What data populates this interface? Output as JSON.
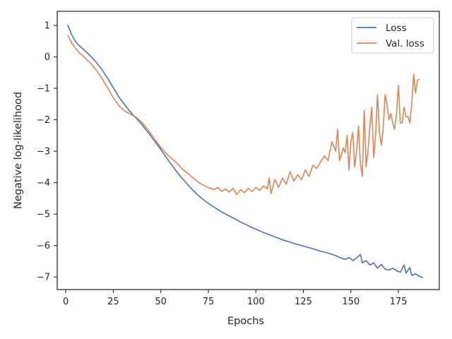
{
  "chart_data": {
    "type": "line",
    "title": "",
    "xlabel": "Epochs",
    "ylabel": "Negative log-likelihood",
    "xlim": [
      -4.5,
      196.5
    ],
    "ylim": [
      -7.4,
      1.45
    ],
    "xticks": [
      0,
      25,
      50,
      75,
      100,
      125,
      150,
      175
    ],
    "yticks": [
      1,
      0,
      -1,
      -2,
      -3,
      -4,
      -5,
      -6,
      -7
    ],
    "xtick_labels": [
      "0",
      "25",
      "50",
      "75",
      "100",
      "125",
      "150",
      "175"
    ],
    "ytick_labels": [
      "1",
      "0",
      "−1",
      "−2",
      "−3",
      "−4",
      "−5",
      "−6",
      "−7"
    ],
    "grid": false,
    "legend_position": "top-right",
    "series": [
      {
        "name": "Loss",
        "color": "#4c72b0",
        "points": [
          [
            1,
            1.02
          ],
          [
            3,
            0.72
          ],
          [
            5,
            0.5
          ],
          [
            7,
            0.36
          ],
          [
            10,
            0.2
          ],
          [
            13,
            0.03
          ],
          [
            16,
            -0.17
          ],
          [
            19,
            -0.4
          ],
          [
            22,
            -0.68
          ],
          [
            25,
            -0.98
          ],
          [
            28,
            -1.28
          ],
          [
            31,
            -1.52
          ],
          [
            34,
            -1.75
          ],
          [
            37,
            -1.95
          ],
          [
            40,
            -2.15
          ],
          [
            43,
            -2.38
          ],
          [
            46,
            -2.62
          ],
          [
            49,
            -2.86
          ],
          [
            52,
            -3.12
          ],
          [
            55,
            -3.38
          ],
          [
            58,
            -3.62
          ],
          [
            61,
            -3.85
          ],
          [
            64,
            -4.05
          ],
          [
            67,
            -4.25
          ],
          [
            70,
            -4.42
          ],
          [
            73,
            -4.57
          ],
          [
            76,
            -4.7
          ],
          [
            79,
            -4.82
          ],
          [
            82,
            -4.93
          ],
          [
            85,
            -5.03
          ],
          [
            88,
            -5.12
          ],
          [
            91,
            -5.22
          ],
          [
            94,
            -5.31
          ],
          [
            97,
            -5.4
          ],
          [
            100,
            -5.48
          ],
          [
            103,
            -5.56
          ],
          [
            106,
            -5.63
          ],
          [
            109,
            -5.7
          ],
          [
            112,
            -5.77
          ],
          [
            115,
            -5.84
          ],
          [
            118,
            -5.89
          ],
          [
            121,
            -5.95
          ],
          [
            124,
            -6.0
          ],
          [
            127,
            -6.05
          ],
          [
            130,
            -6.1
          ],
          [
            133,
            -6.16
          ],
          [
            136,
            -6.21
          ],
          [
            139,
            -6.26
          ],
          [
            142,
            -6.32
          ],
          [
            145,
            -6.4
          ],
          [
            147,
            -6.44
          ],
          [
            149,
            -6.38
          ],
          [
            151,
            -6.48
          ],
          [
            153,
            -6.4
          ],
          [
            155,
            -6.28
          ],
          [
            156,
            -6.55
          ],
          [
            158,
            -6.48
          ],
          [
            160,
            -6.62
          ],
          [
            162,
            -6.55
          ],
          [
            164,
            -6.72
          ],
          [
            166,
            -6.6
          ],
          [
            168,
            -6.75
          ],
          [
            170,
            -6.78
          ],
          [
            172,
            -6.72
          ],
          [
            174,
            -6.8
          ],
          [
            176,
            -6.85
          ],
          [
            178,
            -6.62
          ],
          [
            179,
            -6.88
          ],
          [
            181,
            -6.7
          ],
          [
            182,
            -6.95
          ],
          [
            184,
            -6.9
          ],
          [
            186,
            -6.98
          ],
          [
            188,
            -7.02
          ]
        ]
      },
      {
        "name": "Val. loss",
        "color": "#dd8452",
        "points": [
          [
            1,
            0.7
          ],
          [
            3,
            0.45
          ],
          [
            5,
            0.28
          ],
          [
            7,
            0.14
          ],
          [
            10,
            -0.02
          ],
          [
            13,
            -0.2
          ],
          [
            16,
            -0.42
          ],
          [
            19,
            -0.68
          ],
          [
            22,
            -0.98
          ],
          [
            25,
            -1.3
          ],
          [
            28,
            -1.55
          ],
          [
            31,
            -1.72
          ],
          [
            34,
            -1.82
          ],
          [
            37,
            -1.92
          ],
          [
            40,
            -2.08
          ],
          [
            43,
            -2.3
          ],
          [
            46,
            -2.55
          ],
          [
            49,
            -2.8
          ],
          [
            52,
            -3.02
          ],
          [
            55,
            -3.2
          ],
          [
            58,
            -3.35
          ],
          [
            61,
            -3.55
          ],
          [
            64,
            -3.7
          ],
          [
            67,
            -3.85
          ],
          [
            70,
            -4.0
          ],
          [
            73,
            -4.1
          ],
          [
            76,
            -4.18
          ],
          [
            78,
            -4.22
          ],
          [
            80,
            -4.15
          ],
          [
            82,
            -4.28
          ],
          [
            84,
            -4.2
          ],
          [
            86,
            -4.3
          ],
          [
            88,
            -4.18
          ],
          [
            90,
            -4.38
          ],
          [
            92,
            -4.22
          ],
          [
            94,
            -4.32
          ],
          [
            96,
            -4.18
          ],
          [
            98,
            -4.28
          ],
          [
            100,
            -4.15
          ],
          [
            102,
            -4.25
          ],
          [
            104,
            -4.1
          ],
          [
            106,
            -4.2
          ],
          [
            107,
            -3.85
          ],
          [
            108,
            -4.35
          ],
          [
            110,
            -3.9
          ],
          [
            112,
            -4.15
          ],
          [
            114,
            -3.85
          ],
          [
            116,
            -4.05
          ],
          [
            118,
            -3.65
          ],
          [
            120,
            -3.95
          ],
          [
            122,
            -3.75
          ],
          [
            124,
            -3.9
          ],
          [
            126,
            -3.6
          ],
          [
            128,
            -3.8
          ],
          [
            130,
            -3.45
          ],
          [
            132,
            -3.55
          ],
          [
            134,
            -3.35
          ],
          [
            136,
            -3.15
          ],
          [
            138,
            -3.3
          ],
          [
            140,
            -2.7
          ],
          [
            142,
            -3.0
          ],
          [
            143,
            -2.3
          ],
          [
            144,
            -3.3
          ],
          [
            146,
            -2.9
          ],
          [
            147,
            -3.05
          ],
          [
            148,
            -2.5
          ],
          [
            149,
            -3.6
          ],
          [
            150,
            -2.7
          ],
          [
            151,
            -2.4
          ],
          [
            152,
            -3.5
          ],
          [
            153,
            -3.0
          ],
          [
            154,
            -2.2
          ],
          [
            155,
            -3.4
          ],
          [
            156,
            -3.8
          ],
          [
            157,
            -1.7
          ],
          [
            158,
            -3.5
          ],
          [
            159,
            -3.0
          ],
          [
            160,
            -2.2
          ],
          [
            161,
            -1.6
          ],
          [
            162,
            -3.2
          ],
          [
            163,
            -2.5
          ],
          [
            164,
            -1.2
          ],
          [
            165,
            -2.4
          ],
          [
            166,
            -2.8
          ],
          [
            167,
            -2.3
          ],
          [
            168,
            -1.2
          ],
          [
            169,
            -1.5
          ],
          [
            170,
            -2.0
          ],
          [
            171,
            -1.8
          ],
          [
            172,
            -2.1
          ],
          [
            173,
            -2.3
          ],
          [
            174,
            -1.8
          ],
          [
            175,
            -0.9
          ],
          [
            176,
            -2.1
          ],
          [
            177,
            -2.1
          ],
          [
            178,
            -1.6
          ],
          [
            179,
            -1.9
          ],
          [
            180,
            -1.9
          ],
          [
            181,
            -2.1
          ],
          [
            182,
            -1.5
          ],
          [
            183,
            -0.55
          ],
          [
            184,
            -1.15
          ],
          [
            185,
            -0.75
          ],
          [
            186,
            -0.7
          ]
        ]
      }
    ]
  }
}
